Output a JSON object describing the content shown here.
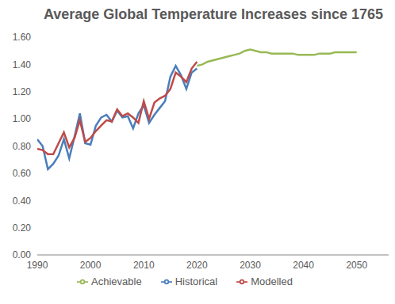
{
  "chart_data": {
    "type": "line",
    "title": "Average Global Temperature Increases since 1765",
    "x": [
      1990,
      1991,
      1992,
      1993,
      1994,
      1995,
      1996,
      1997,
      1998,
      1999,
      2000,
      2001,
      2002,
      2003,
      2004,
      2005,
      2006,
      2007,
      2008,
      2009,
      2010,
      2011,
      2012,
      2013,
      2014,
      2015,
      2016,
      2017,
      2018,
      2019,
      2020,
      2021,
      2022,
      2023,
      2024,
      2025,
      2026,
      2027,
      2028,
      2029,
      2030,
      2031,
      2032,
      2033,
      2034,
      2035,
      2036,
      2037,
      2038,
      2039,
      2040,
      2041,
      2042,
      2043,
      2044,
      2045,
      2046,
      2047,
      2048,
      2049,
      2050
    ],
    "series": [
      {
        "name": "Historical",
        "color": "#4a7ebb",
        "values": [
          0.85,
          0.8,
          0.63,
          0.67,
          0.73,
          0.85,
          0.71,
          0.87,
          1.04,
          0.82,
          0.81,
          0.95,
          1.01,
          1.03,
          0.98,
          1.06,
          1.01,
          1.02,
          0.93,
          1.04,
          1.1,
          0.97,
          1.03,
          1.08,
          1.13,
          1.31,
          1.39,
          1.32,
          1.22,
          1.34,
          1.37,
          null,
          null,
          null,
          null,
          null,
          null,
          null,
          null,
          null,
          null,
          null,
          null,
          null,
          null,
          null,
          null,
          null,
          null,
          null,
          null,
          null,
          null,
          null,
          null,
          null,
          null,
          null,
          null,
          null,
          null
        ]
      },
      {
        "name": "Modelled",
        "color": "#be4b48",
        "values": [
          0.78,
          0.77,
          0.74,
          0.74,
          0.82,
          0.9,
          0.79,
          0.86,
          0.99,
          0.83,
          0.86,
          0.91,
          0.95,
          0.99,
          0.98,
          1.07,
          1.02,
          1.04,
          1.01,
          0.97,
          1.13,
          1.0,
          1.12,
          1.15,
          1.17,
          1.22,
          1.34,
          1.31,
          1.27,
          1.37,
          1.42,
          null,
          null,
          null,
          null,
          null,
          null,
          null,
          null,
          null,
          null,
          null,
          null,
          null,
          null,
          null,
          null,
          null,
          null,
          null,
          null,
          null,
          null,
          null,
          null,
          null,
          null,
          null,
          null,
          null,
          null
        ]
      },
      {
        "name": "Achievable",
        "color": "#98b954",
        "values": [
          null,
          null,
          null,
          null,
          null,
          null,
          null,
          null,
          null,
          null,
          null,
          null,
          null,
          null,
          null,
          null,
          null,
          null,
          null,
          null,
          null,
          null,
          null,
          null,
          null,
          null,
          null,
          null,
          null,
          null,
          1.39,
          1.4,
          1.42,
          1.43,
          1.44,
          1.45,
          1.46,
          1.47,
          1.48,
          1.5,
          1.51,
          1.5,
          1.49,
          1.49,
          1.48,
          1.48,
          1.48,
          1.48,
          1.48,
          1.47,
          1.47,
          1.47,
          1.47,
          1.48,
          1.48,
          1.48,
          1.49,
          1.49,
          1.49,
          1.49,
          1.49
        ]
      }
    ],
    "xlim": [
      1990,
      2056
    ],
    "xticks": [
      1990,
      2000,
      2010,
      2020,
      2030,
      2040,
      2050
    ],
    "ylim": [
      0,
      1.6
    ],
    "yticks": [
      {
        "value": 0,
        "label": "0.00"
      },
      {
        "value": 0.2,
        "label": "0.20"
      },
      {
        "value": 0.4,
        "label": "0.40"
      },
      {
        "value": 0.6,
        "label": "0.60"
      },
      {
        "value": 0.8,
        "label": "0.80"
      },
      {
        "value": 1.0,
        "label": "1.00"
      },
      {
        "value": 1.2,
        "label": "1.20"
      },
      {
        "value": 1.4,
        "label": "1.40"
      },
      {
        "value": 1.6,
        "label": "1.60"
      }
    ],
    "grid": false,
    "legend": "bottom"
  }
}
